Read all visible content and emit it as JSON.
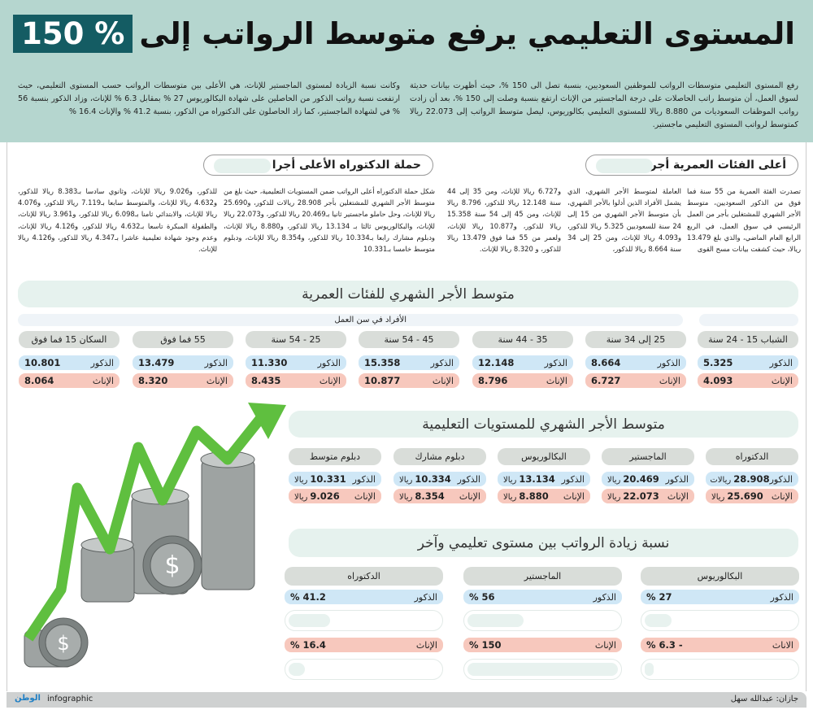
{
  "header": {
    "title_main": "المستوى التعليمي يرفع متوسط الرواتب إلى",
    "title_highlight": "150 %",
    "intro_right": "رفع المستوى التعليمي متوسطات الرواتب للموظفين السعوديين، بنسبة تصل الى 150 %، حيث أظهرت بيانات حديثة لسوق العمل، أن متوسط راتب الحاصلات على درجة الماجستير من الإناث ارتفع بنسبة وصلت إلى 150 %، بعد أن زادت رواتب الموظفات السعوديات من 8.880 ريالا للمستوى التعليمي بكالوريوس، ليصل متوسط الرواتب إلى 22.073 ريالا كمتوسط لرواتب المستوى التعليمي ماجستير.",
    "intro_left": "وكانت نسبة الزيادة لمستوى الماجستير للإناث، هي الأعلى بين متوسطات الرواتب حسب المستوى التعليمي، حيث ارتفعت نسبة رواتب الذكور من الحاصلين على شهادة البكالوريوس 27 % بمقابل 6.3 % للإناث، وزاد الذكور بنسبة 56 % في لشهادة الماجستير، كما زاد الحاصلون على الدكتوراه من الذكور، بنسبة 41.2 % والإناث 16.4 %"
  },
  "article_age": {
    "heading": "أعلى الفئات العمرية أجرا",
    "columns": [
      "تصدرت الفئة العمرية من 55 سنة فما فوق من الذكور السعوديين، متوسط الأجر الشهري للمشتغلين بأجر من العمل الرئيسي في سوق العمل، في الربع الرابع العام الماضي، والذي بلغ 13.479 ريالا، حيث كشفت بيانات مسح القوى",
      "العاملة لمتوسط الأجر الشهري، الذي يشمل الأفراد الذين أدلوا بالأجر الشهري، بأن متوسط الأجر الشهري من 15 إلى 24 سنة للسعوديين 5.325 ريالا للذكور، و4.093 ريالا للإناث، ومن 25 إلى 34 سنة 8.664 ريالا للذكور،",
      "و6.727 ريالا للإناث، ومن 35 إلى 44 سنة 12.148 ريالا للذكور، 8.796 ريالا للإناث، ومن 45 إلى 54 سنة 15.358 ريالا للذكور، و10.877 ريالا للإناث، ولعمر من 55 فما فوق 13.479 ريالا للذكور، و 8.320 ريالا للإناث."
    ]
  },
  "article_phd": {
    "heading": "حملة الدكتوراه الأعلى أجرا",
    "columns": [
      "شكل حملة الدكتوراه أعلى الرواتب ضمن المستويات التعليمية، حيث بلغ من متوسط الأجر الشهري للمشتغلين بأجر 28.908 ريالات للذكور، و25.690 ريالا للإناث، وحل حاملو ماجستير ثانيا بـ20.469 ريالا للذكور، و22.073 ريالا للإناث، والبكالوريوس ثالثا بـ 13.134 ريالا للذكور، و8.880 ريالا للإناث، ودبلوم مشارك رابعا بـ10.334 ريالا للذكور، و8.354 ريالا للإناث، ودبلوم متوسط خامسا بـ10.331",
      "للذكور، و9.026 ريالا للإناث، وثانوي سادسا بـ8.383 ريالا للذكور، و4.632 ريالا للإناث، والمتوسط سابعا بـ7.119 ريالا للذكور، و4.076 ريالا للإناث، والابتدائي ثامنا بـ6.098 ريالا للذكور، و3.961 ريالا للإناث، والطفولة المبكرة تاسعا بـ4.632 ريالا للذكور، و4.126 ريالا للإناث، وعدم وجود شهادة تعليمية عاشرا بـ4.347 ريالا للذكور، و4.126 ريالا للإناث."
    ]
  },
  "age_section": {
    "title": "متوسط الأجر الشهري للفئات العمرية",
    "subtitle": "الأفراد في سن العمل",
    "male_label": "الذكور",
    "female_label": "الإناث",
    "groups": [
      {
        "label": "الشباب 15 - 24 سنة",
        "male": "5.325",
        "female": "4.093"
      },
      {
        "label": "25 إلى 34 سنة",
        "male": "8.664",
        "female": "6.727"
      },
      {
        "label": "35 - 44 سنة",
        "male": "12.148",
        "female": "8.796"
      },
      {
        "label": "45 - 54 سنة",
        "male": "15.358",
        "female": "10.877"
      },
      {
        "label": "25 - 54 سنة",
        "male": "11.330",
        "female": "8.435"
      },
      {
        "label": "55 فما فوق",
        "male": "13.479",
        "female": "8.320"
      },
      {
        "label": "السكان 15 فما فوق",
        "male": "10.801",
        "female": "8.064"
      }
    ]
  },
  "edu_section": {
    "title": "متوسط الأجر الشهري للمستويات التعليمية",
    "male_label": "الذكور",
    "female_label": "الإناث",
    "levels": [
      {
        "label": "الدكتوراه",
        "male": "28.908",
        "male_unit": "ريالات",
        "female": "25.690",
        "female_unit": "ريالا"
      },
      {
        "label": "الماجستير",
        "male": "20.469",
        "male_unit": "ريالا",
        "female": "22.073",
        "female_unit": "ريالا"
      },
      {
        "label": "البكالوريوس",
        "male": "13.134",
        "male_unit": "ريالا",
        "female": "8.880",
        "female_unit": "ريالا"
      },
      {
        "label": "دبلوم مشارك",
        "male": "10.334",
        "male_unit": "ريالا",
        "female": "8.354",
        "female_unit": "ريالا"
      },
      {
        "label": "دبلوم متوسط",
        "male": "10.331",
        "male_unit": "ريالا",
        "female": "9.026",
        "female_unit": "ريالا"
      }
    ]
  },
  "increase_section": {
    "title": "نسبة زيادة الرواتب بين مستوى تعليمي وآخر",
    "levels": [
      {
        "label": "البكالوريوس",
        "male_label": "الذكور",
        "male": "27 %",
        "male_pct": 27,
        "female_label": "الاناث",
        "female": "- 6.3 %",
        "female_pct": 6.3
      },
      {
        "label": "الماجستير",
        "male_label": "الذكور",
        "male": "56 %",
        "male_pct": 56,
        "female_label": "الإناث",
        "female": "150 %",
        "female_pct": 150
      },
      {
        "label": "الدكتوراه",
        "male_label": "الذكور",
        "male": "41.2 %",
        "male_pct": 41.2,
        "female_label": "الإناث",
        "female": "16.4 %",
        "female_pct": 16.4
      }
    ]
  },
  "footer": {
    "credit": "جازان: عبدالله سهل",
    "brand": "الوطن",
    "brand_suffix": "infographic"
  },
  "colors": {
    "header_bg": "#b5d6cf",
    "accent": "#145c63",
    "male": "#cfe7f6",
    "female": "#f7c8bd",
    "arrow": "#5fbf3f"
  }
}
